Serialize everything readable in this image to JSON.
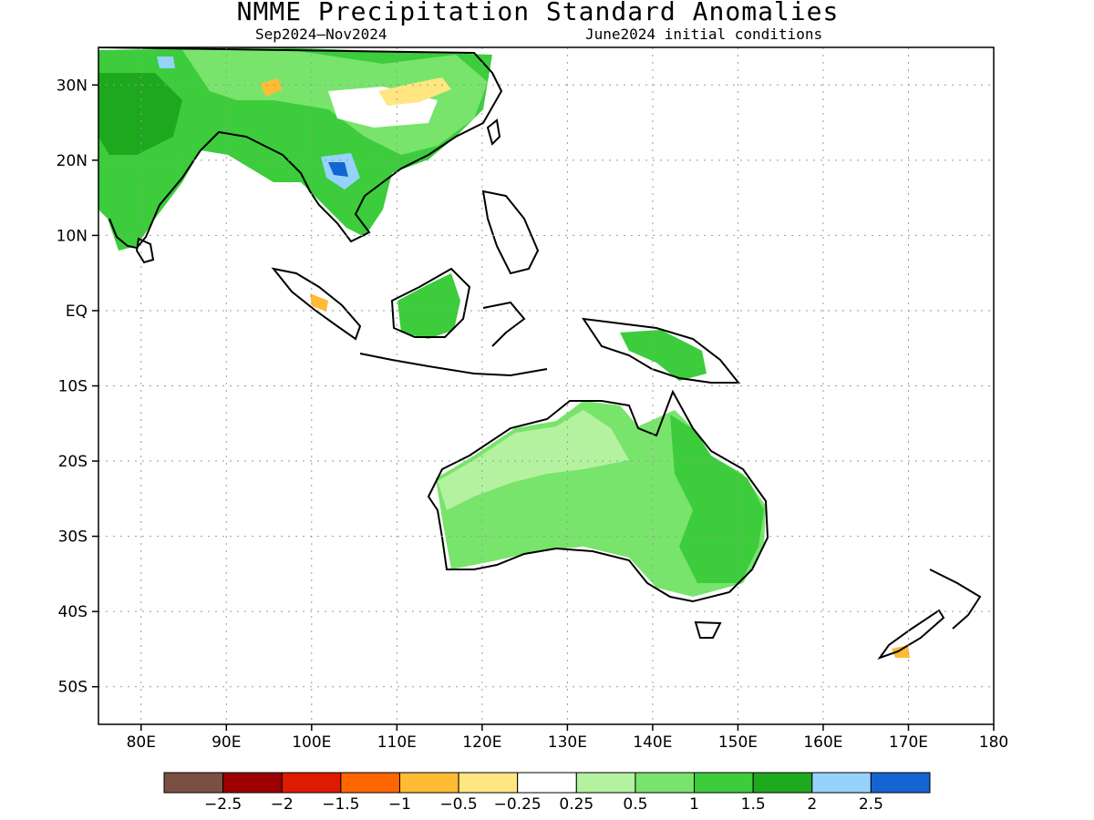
{
  "title": "NMME Precipitation Standard Anomalies",
  "period": "Sep2024–Nov2024",
  "init": "June2024 initial conditions",
  "lat_labels": [
    "30N",
    "20N",
    "10N",
    "EQ",
    "10S",
    "20S",
    "30S",
    "40S",
    "50S"
  ],
  "lat_values": [
    30,
    20,
    10,
    0,
    -10,
    -20,
    -30,
    -40,
    -50
  ],
  "lon_labels": [
    "80E",
    "90E",
    "100E",
    "110E",
    "120E",
    "130E",
    "140E",
    "150E",
    "160E",
    "170E",
    "180"
  ],
  "lon_values": [
    80,
    90,
    100,
    110,
    120,
    130,
    140,
    150,
    160,
    170,
    180
  ],
  "extent": {
    "lon_min": 75,
    "lon_max": 180,
    "lat_min": -55,
    "lat_max": 35
  },
  "colorbar": {
    "colors": [
      "#7b5044",
      "#9c0000",
      "#de1a00",
      "#ff6600",
      "#ffbb33",
      "#ffe680",
      "#ffffff",
      "#b4f2a0",
      "#78e46c",
      "#3ccc3c",
      "#1ea81e",
      "#96d2fa",
      "#1464d2"
    ],
    "labels": [
      "−2.5",
      "−2",
      "−1.5",
      "−1",
      "−0.5",
      "−0.25",
      "0.25",
      "0.5",
      "1",
      "1.5",
      "2",
      "2.5"
    ]
  },
  "colors": {
    "land_outline": "#000000",
    "grid": "#9a9a9a"
  }
}
